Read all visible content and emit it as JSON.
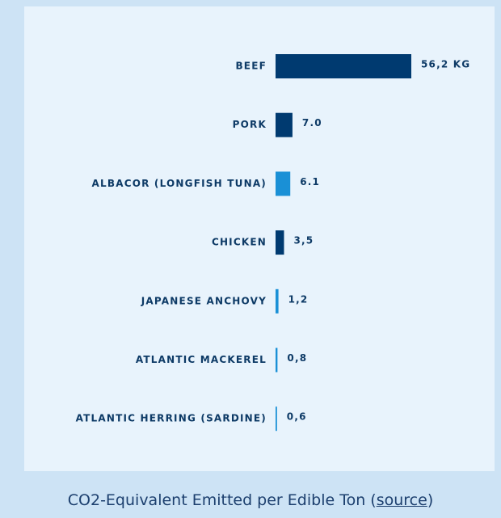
{
  "chart_data": {
    "type": "bar",
    "orientation": "horizontal",
    "categories": [
      "BEEF",
      "PORK",
      "ALBACOR (LONGFISH TUNA)",
      "CHICKEN",
      "JAPANESE ANCHOVY",
      "ATLANTIC MACKEREL",
      "ATLANTIC HERRING (SARDINE)"
    ],
    "values": [
      56.2,
      7.0,
      6.1,
      3.5,
      1.2,
      0.8,
      0.6
    ],
    "value_labels": [
      "56,2 KG",
      "7.0",
      "6.1",
      "3,5",
      "1,2",
      "0,8",
      "0,6"
    ],
    "colors": [
      "#003a70",
      "#003a70",
      "#1a90d6",
      "#003a70",
      "#1a90d6",
      "#1a90d6",
      "#1a90d6"
    ],
    "caption_prefix": "CO2-Equivalent Emitted per Edible Ton (",
    "caption_link": "source",
    "caption_suffix": ")"
  }
}
